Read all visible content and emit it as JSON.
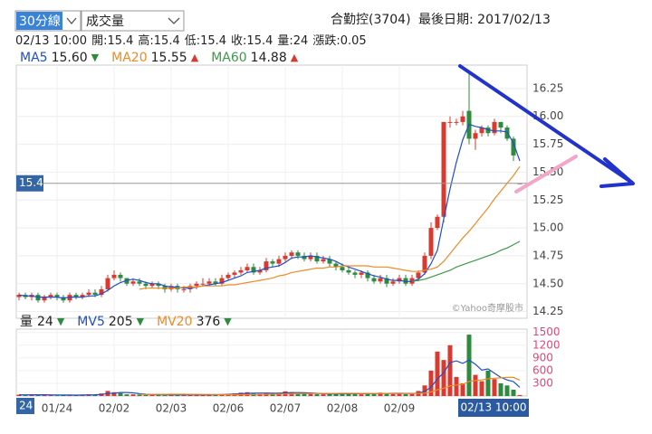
{
  "toolbar": {
    "period": "30分線",
    "indicator": "成交量",
    "stock": "合勤控(3704)",
    "last_date": "最後日期: 2017/02/13"
  },
  "info": [
    "02/13 10:00",
    "開:15.4",
    "高:15.4",
    "低:15.4",
    "收:15.4",
    "量:24",
    "漲跌:0.05"
  ],
  "chart_data": {
    "type": "candlestick",
    "up_color": "#d9392f",
    "down_color": "#2e8b3e",
    "categories": [
      null,
      null,
      null,
      null,
      null,
      null,
      "01/24",
      null,
      null,
      null,
      null,
      null,
      null,
      null,
      null,
      "02/02",
      null,
      null,
      null,
      null,
      null,
      null,
      null,
      null,
      "02/03",
      null,
      null,
      null,
      null,
      null,
      null,
      null,
      null,
      "02/06",
      null,
      null,
      null,
      null,
      null,
      null,
      null,
      null,
      "02/07",
      null,
      null,
      null,
      null,
      null,
      null,
      null,
      null,
      "02/08",
      null,
      null,
      null,
      null,
      null,
      null,
      null,
      null,
      "02/09",
      null,
      null,
      null,
      null,
      null,
      null,
      null,
      null,
      null,
      null,
      null,
      null,
      null,
      null,
      null,
      null,
      null,
      null,
      null
    ],
    "open": [
      14.38,
      14.4,
      14.38,
      14.4,
      14.35,
      14.38,
      14.4,
      14.38,
      14.35,
      14.4,
      14.38,
      14.4,
      14.42,
      14.4,
      14.45,
      14.55,
      14.58,
      14.55,
      14.5,
      14.52,
      14.5,
      14.48,
      14.5,
      14.48,
      14.45,
      14.48,
      14.45,
      14.45,
      14.48,
      14.5,
      14.5,
      14.52,
      14.5,
      14.55,
      14.58,
      14.6,
      14.62,
      14.65,
      14.6,
      14.62,
      14.7,
      14.68,
      14.72,
      14.75,
      14.78,
      14.75,
      14.72,
      14.75,
      14.7,
      14.72,
      14.68,
      14.65,
      14.62,
      14.6,
      14.58,
      14.6,
      14.55,
      14.52,
      14.55,
      14.5,
      14.52,
      14.55,
      14.5,
      14.55,
      14.6,
      14.75,
      15.0,
      15.1,
      15.95,
      15.95,
      15.95,
      16.05,
      15.8,
      15.85,
      15.9,
      15.85,
      15.95,
      15.9,
      15.8,
      15.4
    ],
    "high": [
      14.42,
      14.42,
      14.42,
      14.42,
      14.4,
      14.42,
      14.42,
      14.4,
      14.42,
      14.42,
      14.42,
      14.45,
      14.45,
      14.48,
      14.58,
      14.62,
      14.6,
      14.55,
      14.55,
      14.55,
      14.52,
      14.52,
      14.52,
      14.5,
      14.5,
      14.5,
      14.48,
      14.5,
      14.52,
      14.55,
      14.55,
      14.55,
      14.58,
      14.6,
      14.62,
      14.65,
      14.68,
      14.68,
      14.65,
      14.73,
      14.72,
      14.75,
      14.78,
      14.8,
      14.8,
      14.78,
      14.78,
      14.78,
      14.75,
      14.75,
      14.7,
      14.68,
      14.65,
      14.62,
      14.62,
      14.62,
      14.58,
      14.58,
      14.58,
      14.55,
      14.58,
      14.58,
      14.58,
      14.62,
      14.78,
      15.05,
      15.12,
      15.95,
      16.0,
      15.98,
      16.05,
      16.4,
      15.88,
      15.92,
      15.92,
      15.98,
      15.95,
      15.92,
      15.82,
      15.4
    ],
    "low": [
      14.35,
      14.36,
      14.35,
      14.33,
      14.33,
      14.36,
      14.35,
      14.33,
      14.33,
      14.36,
      14.36,
      14.38,
      14.38,
      14.38,
      14.43,
      14.53,
      14.52,
      14.48,
      14.48,
      14.48,
      14.45,
      14.46,
      14.45,
      14.42,
      14.43,
      14.42,
      14.42,
      14.42,
      14.45,
      14.48,
      14.48,
      14.48,
      14.48,
      14.53,
      14.55,
      14.58,
      14.6,
      14.58,
      14.58,
      14.6,
      14.65,
      14.65,
      14.7,
      14.72,
      14.72,
      14.7,
      14.7,
      14.68,
      14.68,
      14.65,
      14.62,
      14.6,
      14.58,
      14.55,
      14.55,
      14.52,
      14.5,
      14.5,
      14.47,
      14.48,
      14.5,
      14.48,
      14.48,
      14.52,
      14.58,
      14.72,
      14.98,
      15.05,
      15.9,
      15.92,
      15.92,
      15.75,
      15.7,
      15.82,
      15.82,
      15.83,
      15.85,
      15.78,
      15.6,
      15.4
    ],
    "close": [
      14.4,
      14.38,
      14.4,
      14.35,
      14.38,
      14.4,
      14.38,
      14.35,
      14.4,
      14.38,
      14.4,
      14.42,
      14.4,
      14.45,
      14.55,
      14.58,
      14.55,
      14.5,
      14.52,
      14.5,
      14.48,
      14.5,
      14.48,
      14.45,
      14.48,
      14.45,
      14.45,
      14.48,
      14.5,
      14.5,
      14.52,
      14.5,
      14.55,
      14.58,
      14.6,
      14.62,
      14.65,
      14.6,
      14.62,
      14.7,
      14.68,
      14.72,
      14.75,
      14.78,
      14.75,
      14.72,
      14.75,
      14.7,
      14.72,
      14.68,
      14.65,
      14.62,
      14.6,
      14.58,
      14.6,
      14.55,
      14.52,
      14.55,
      14.5,
      14.52,
      14.55,
      14.5,
      14.55,
      14.6,
      14.75,
      15.0,
      15.1,
      15.95,
      15.95,
      15.95,
      16.0,
      15.8,
      15.85,
      15.9,
      15.85,
      15.95,
      15.9,
      15.8,
      15.65,
      15.4
    ],
    "series": [
      {
        "name": "MA5",
        "color": "#1f4fc8",
        "value_label": "15.60",
        "trend": "▼",
        "values": [
          14.4,
          14.39,
          14.39,
          14.38,
          14.38,
          14.38,
          14.38,
          14.37,
          14.38,
          14.38,
          14.38,
          14.39,
          14.39,
          14.41,
          14.44,
          14.48,
          14.51,
          14.53,
          14.54,
          14.53,
          14.51,
          14.5,
          14.5,
          14.48,
          14.47,
          14.47,
          14.46,
          14.46,
          14.47,
          14.48,
          14.49,
          14.5,
          14.51,
          14.53,
          14.55,
          14.57,
          14.6,
          14.61,
          14.62,
          14.64,
          14.65,
          14.66,
          14.69,
          14.73,
          14.74,
          14.74,
          14.75,
          14.74,
          14.73,
          14.72,
          14.7,
          14.67,
          14.65,
          14.63,
          14.61,
          14.59,
          14.57,
          14.56,
          14.54,
          14.53,
          14.53,
          14.52,
          14.52,
          14.54,
          14.59,
          14.68,
          14.8,
          15.08,
          15.35,
          15.59,
          15.79,
          15.93,
          15.91,
          15.9,
          15.88,
          15.87,
          15.87,
          15.86,
          15.76,
          15.6
        ]
      },
      {
        "name": "MA20",
        "color": "#f08a24",
        "value_label": "15.55",
        "trend": "▲",
        "values": [
          null,
          null,
          null,
          null,
          null,
          null,
          null,
          null,
          null,
          null,
          null,
          null,
          null,
          null,
          null,
          null,
          null,
          null,
          null,
          14.45,
          14.46,
          14.46,
          14.46,
          14.46,
          14.46,
          14.46,
          14.47,
          14.47,
          14.47,
          14.48,
          14.48,
          14.48,
          14.48,
          14.49,
          14.49,
          14.5,
          14.51,
          14.52,
          14.53,
          14.54,
          14.55,
          14.57,
          14.58,
          14.6,
          14.61,
          14.62,
          14.63,
          14.64,
          14.64,
          14.65,
          14.65,
          14.66,
          14.66,
          14.66,
          14.66,
          14.66,
          14.65,
          14.65,
          14.65,
          14.64,
          14.63,
          14.62,
          14.61,
          14.61,
          14.62,
          14.63,
          14.65,
          14.7,
          14.77,
          14.84,
          14.91,
          14.97,
          15.04,
          15.11,
          15.18,
          15.26,
          15.33,
          15.4,
          15.47,
          15.55
        ]
      },
      {
        "name": "MA60",
        "color": "#3c9a4a",
        "value_label": "14.88",
        "trend": "▲",
        "values": [
          null,
          null,
          null,
          null,
          null,
          null,
          null,
          null,
          null,
          null,
          null,
          null,
          null,
          null,
          null,
          null,
          null,
          null,
          null,
          null,
          null,
          null,
          null,
          null,
          null,
          null,
          null,
          null,
          null,
          null,
          null,
          null,
          null,
          null,
          null,
          null,
          null,
          null,
          null,
          null,
          null,
          null,
          null,
          null,
          null,
          null,
          null,
          null,
          null,
          null,
          null,
          null,
          null,
          null,
          null,
          null,
          null,
          null,
          null,
          null,
          null,
          null,
          14.52,
          14.53,
          14.54,
          14.56,
          14.58,
          14.6,
          14.62,
          14.65,
          14.67,
          14.69,
          14.71,
          14.73,
          14.75,
          14.77,
          14.8,
          14.82,
          14.85,
          14.88
        ]
      }
    ],
    "ylim": [
      14.19,
      16.46
    ],
    "yticks": [
      16.25,
      {
        "value": 16.0,
        "label": "16.00"
      },
      15.75,
      {
        "value": 15.5,
        "label": "15.50"
      },
      15.25,
      {
        "value": 15.0,
        "label": "15.00"
      },
      14.75,
      {
        "value": 14.5,
        "label": "14.50"
      },
      14.25
    ],
    "price_line": {
      "value": 15.4,
      "label": "15.4"
    },
    "crosshair_label": "02/13 10:00",
    "watermark": "©Yahoo奇摩股市",
    "volume": {
      "type": "bar",
      "name": "量",
      "current": 24,
      "trend": "▼",
      "values": [
        30,
        20,
        40,
        25,
        30,
        20,
        15,
        30,
        20,
        25,
        30,
        40,
        35,
        60,
        120,
        90,
        70,
        40,
        40,
        35,
        30,
        25,
        30,
        40,
        25,
        30,
        20,
        30,
        25,
        35,
        30,
        40,
        45,
        50,
        60,
        80,
        90,
        60,
        50,
        70,
        60,
        80,
        110,
        90,
        70,
        60,
        50,
        45,
        40,
        50,
        45,
        60,
        70,
        50,
        40,
        55,
        60,
        80,
        70,
        50,
        60,
        45,
        70,
        120,
        250,
        600,
        1050,
        850,
        1200,
        450,
        300,
        1450,
        500,
        350,
        600,
        400,
        300,
        250,
        150,
        24
      ],
      "series": [
        {
          "name": "MV5",
          "color": "#1f4fc8",
          "value_label": "205",
          "trend": "▼",
          "values": [
            30,
            28,
            30,
            29,
            29,
            27,
            26,
            24,
            23,
            22,
            24,
            28,
            30,
            38,
            57,
            69,
            83,
            84,
            74,
            56,
            43,
            34,
            32,
            32,
            30,
            30,
            29,
            29,
            28,
            28,
            28,
            32,
            35,
            40,
            46,
            54,
            65,
            68,
            70,
            70,
            66,
            64,
            74,
            82,
            82,
            76,
            72,
            63,
            53,
            49,
            48,
            50,
            53,
            55,
            55,
            55,
            56,
            61,
            61,
            63,
            64,
            61,
            59,
            69,
            109,
            209,
            404,
            554,
            790,
            830,
            770,
            850,
            750,
            610,
            640,
            540,
            440,
            380,
            340,
            205
          ]
        },
        {
          "name": "MV20",
          "color": "#f08a24",
          "value_label": "376",
          "trend": "▼",
          "values": [
            null,
            null,
            null,
            null,
            null,
            null,
            null,
            null,
            null,
            null,
            null,
            null,
            null,
            null,
            null,
            null,
            null,
            null,
            null,
            38,
            38,
            39,
            40,
            41,
            42,
            42,
            42,
            41,
            40,
            39,
            38,
            37,
            34,
            31,
            30,
            32,
            35,
            37,
            39,
            41,
            43,
            45,
            49,
            52,
            56,
            58,
            59,
            60,
            61,
            62,
            62,
            63,
            64,
            63,
            62,
            61,
            61,
            61,
            61,
            60,
            59,
            58,
            58,
            61,
            70,
            97,
            146,
            185,
            240,
            260,
            274,
            345,
            366,
            380,
            405,
            420,
            430,
            440,
            440,
            376
          ]
        }
      ],
      "ylim": [
        0,
        1580
      ],
      "yticks": [
        1500,
        1200,
        900,
        600,
        300
      ]
    }
  }
}
